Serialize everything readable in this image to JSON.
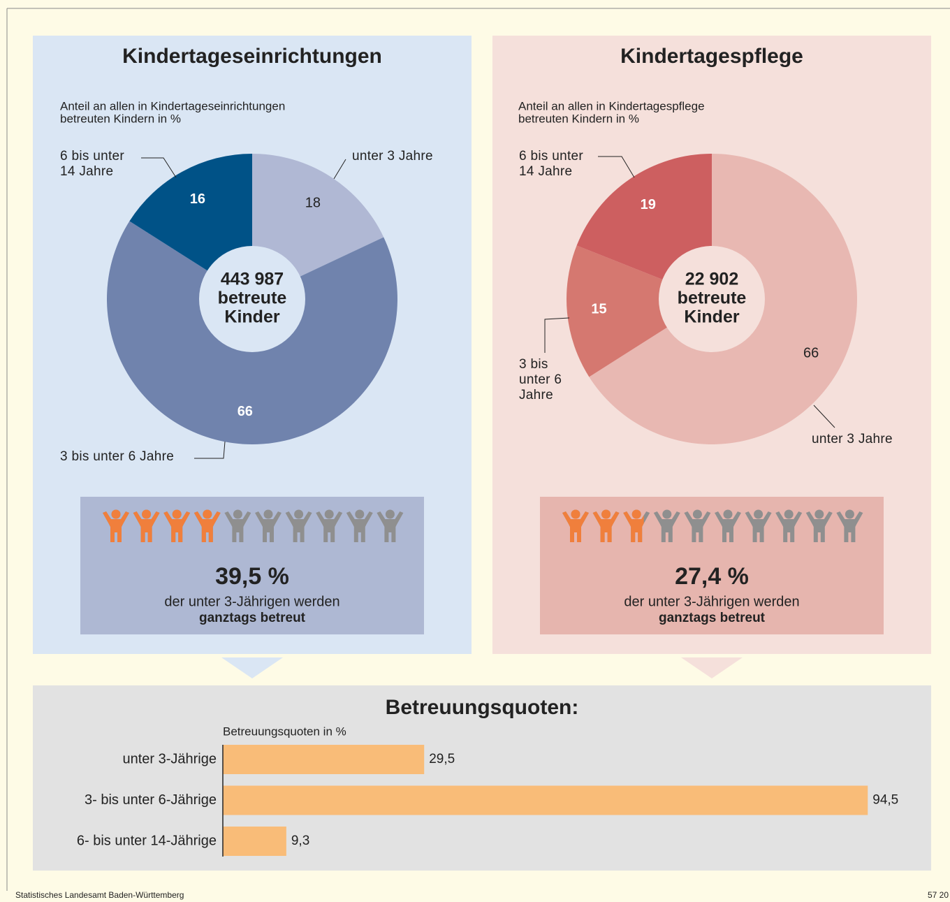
{
  "chart_data": [
    {
      "type": "pie",
      "title": "Kindertageseinrichtungen",
      "subtitle": [
        "Anteil an allen in Kindertageseinrichtungen",
        "betreuten Kindern in %"
      ],
      "center_label": [
        "443 987",
        "betreute",
        "Kinder"
      ],
      "categories": [
        "unter 3 Jahre",
        "3 bis unter 6 Jahre",
        "6 bis unter 14 Jahre"
      ],
      "values": [
        18,
        66,
        16
      ],
      "colors": [
        "#b0b8d4",
        "#7083ad",
        "#005287"
      ],
      "value_label_colors": [
        "#222222",
        "#ffffff",
        "#ffffff"
      ]
    },
    {
      "type": "pie",
      "title": "Kindertagespflege",
      "subtitle": [
        "Anteil an allen in Kindertagespflege",
        "betreuten Kindern in %"
      ],
      "center_label": [
        "22 902",
        "betreute",
        "Kinder"
      ],
      "categories": [
        "unter 3 Jahre",
        "3 bis unter 6 Jahre",
        "6 bis unter 14 Jahre"
      ],
      "values": [
        66,
        15,
        19
      ],
      "colors": [
        "#e8b8b2",
        "#d57870",
        "#cd5f60"
      ],
      "value_label_colors": [
        "#222222",
        "#ffffff",
        "#ffffff"
      ]
    },
    {
      "type": "bar",
      "title": "Betreuungsquoten:",
      "subtitle": "Betreuungsquoten in %",
      "categories": [
        "unter 3-Jährige",
        "3- bis unter 6-Jährige",
        "6- bis unter 14-Jährige"
      ],
      "values": [
        29.5,
        94.5,
        9.3
      ],
      "value_labels": [
        "29,5",
        "94,5",
        "9,3"
      ],
      "color": "#f9bc78",
      "xlim": [
        0,
        100
      ],
      "orientation": "horizontal"
    }
  ],
  "highlights": [
    {
      "value": 39.5,
      "label": "39,5 %",
      "text": "der unter 3-Jährigen werden",
      "bold": "ganztags betreut"
    },
    {
      "value": 27.4,
      "label": "27,4 %",
      "text": "der unter 3-Jährigen werden",
      "bold": "ganztags betreut"
    }
  ],
  "footer": {
    "source": "Statistisches Landesamt Baden-Württemberg",
    "code": "57 20"
  }
}
